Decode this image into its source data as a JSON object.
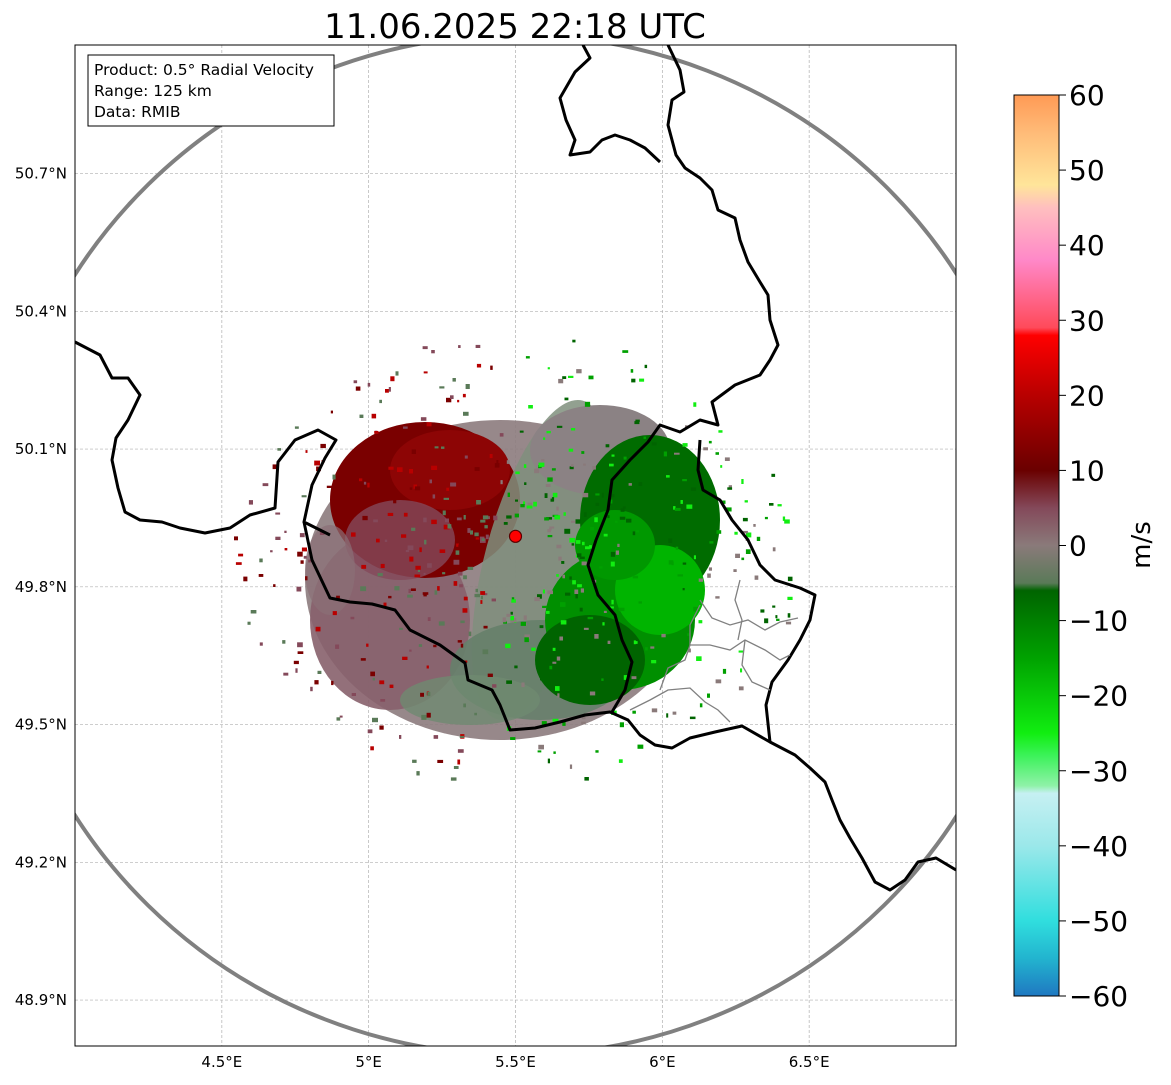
{
  "title": "11.06.2025 22:18 UTC",
  "info_box": {
    "product": "Product: 0.5° Radial Velocity",
    "range": "Range: 125 km",
    "data": "Data: RMIB"
  },
  "map_extent": {
    "lon_min": 4.0,
    "lon_max": 7.0,
    "lat_min": 48.8,
    "lat_max": 50.98
  },
  "radar_site": {
    "lon": 5.5,
    "lat": 49.91
  },
  "lon_ticks": [
    {
      "value": 4.5,
      "label": "4.5°E"
    },
    {
      "value": 5.0,
      "label": "5°E"
    },
    {
      "value": 5.5,
      "label": "5.5°E"
    },
    {
      "value": 6.0,
      "label": "6°E"
    },
    {
      "value": 6.5,
      "label": "6.5°E"
    }
  ],
  "lat_ticks": [
    {
      "value": 50.7,
      "label": "50.7°N"
    },
    {
      "value": 50.4,
      "label": "50.4°N"
    },
    {
      "value": 50.1,
      "label": "50.1°N"
    },
    {
      "value": 49.8,
      "label": "49.8°N"
    },
    {
      "value": 49.5,
      "label": "49.5°N"
    },
    {
      "value": 49.2,
      "label": "49.2°N"
    },
    {
      "value": 48.9,
      "label": "48.9°N"
    }
  ],
  "colorbar": {
    "label": "m/s",
    "min": -60,
    "max": 60,
    "tick_values": [
      60,
      50,
      40,
      30,
      20,
      10,
      0,
      -10,
      -20,
      -30,
      -40,
      -50,
      -60
    ],
    "tick_labels": [
      "60",
      "50",
      "40",
      "30",
      "20",
      "10",
      "0",
      "−10",
      "−20",
      "−30",
      "−40",
      "−50",
      "−60"
    ],
    "stops": [
      {
        "v": -60,
        "color": "#1f78c1"
      },
      {
        "v": -55,
        "color": "#22b4cf"
      },
      {
        "v": -50,
        "color": "#30dede"
      },
      {
        "v": -40,
        "color": "#9be8ea"
      },
      {
        "v": -33,
        "color": "#c6f0f2"
      },
      {
        "v": -32,
        "color": "#8ff2a8"
      },
      {
        "v": -28,
        "color": "#3cf25a"
      },
      {
        "v": -25,
        "color": "#11ee11"
      },
      {
        "v": -15,
        "color": "#00a200"
      },
      {
        "v": -6,
        "color": "#006400"
      },
      {
        "v": -5,
        "color": "#5a7a58"
      },
      {
        "v": 0,
        "color": "#8a7a7a"
      },
      {
        "v": 5,
        "color": "#84495a"
      },
      {
        "v": 10,
        "color": "#6a0000"
      },
      {
        "v": 20,
        "color": "#b80000"
      },
      {
        "v": 28,
        "color": "#ff0000"
      },
      {
        "v": 29,
        "color": "#ff4a5a"
      },
      {
        "v": 38,
        "color": "#ff88c8"
      },
      {
        "v": 45,
        "color": "#ffbfbf"
      },
      {
        "v": 48,
        "color": "#ffe59a"
      },
      {
        "v": 55,
        "color": "#ffbb78"
      },
      {
        "v": 60,
        "color": "#ff9a55"
      }
    ]
  },
  "colors": {
    "range_ring": "#808080",
    "border_major": "#000000",
    "border_minor": "#808080",
    "grid": "#b0b0b0"
  }
}
